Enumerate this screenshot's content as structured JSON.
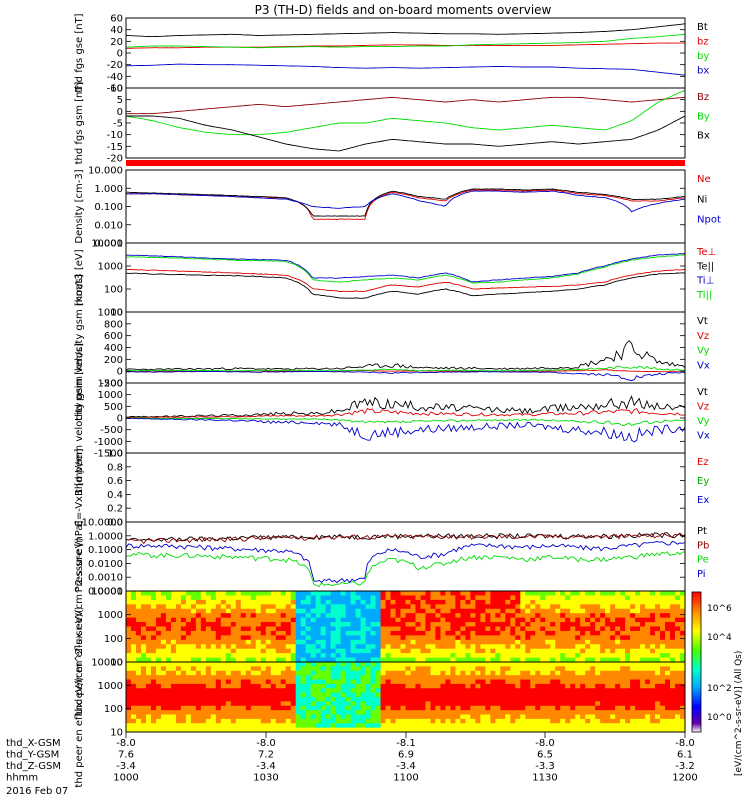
{
  "title": "P3 (TH-D) fields and on-board moments overview",
  "date": "2016 Feb 07",
  "colorbar": {
    "label": "[eV/(cm^2-s-sr-eV)] (All Qs)",
    "ticks": [
      {
        "label": "10^6"
      },
      {
        "label": "10^4"
      },
      {
        "label": "10^2"
      },
      {
        "label": "10^0"
      }
    ]
  },
  "ephemeris": {
    "rows": [
      {
        "label": "thd_X-GSM",
        "values": [
          "-8.0",
          "-8.0",
          "-8.1",
          "-8.0",
          "-8.0"
        ]
      },
      {
        "label": "thd_Y-GSM",
        "values": [
          "7.6",
          "7.2",
          "6.9",
          "6.5",
          "6.1"
        ]
      },
      {
        "label": "thd_Z-GSM",
        "values": [
          "-3.4",
          "-3.4",
          "-3.4",
          "-3.3",
          "-3.2"
        ]
      },
      {
        "label": "hhmm",
        "values": [
          "1000",
          "1030",
          "1100",
          "1130",
          "1200"
        ]
      }
    ]
  },
  "chart_data": [
    {
      "type": "line",
      "ylabel": "thd fgs gse [nT]",
      "ylim": [
        -60,
        60
      ],
      "yticks": [
        "60",
        "40",
        "20",
        "0",
        "-20",
        "-40",
        "-60"
      ],
      "series": [
        {
          "name": "Bt",
          "color": "#000000",
          "values": [
            30,
            28,
            30,
            31,
            32,
            30,
            31,
            32,
            33,
            34,
            35,
            34,
            33,
            33,
            32,
            33,
            34,
            35,
            37,
            40,
            45,
            50
          ]
        },
        {
          "name": "bz",
          "color": "#dd0000",
          "values": [
            8,
            9,
            9,
            10,
            10,
            10,
            11,
            12,
            12,
            13,
            14,
            14,
            13,
            13,
            13,
            13,
            13,
            14,
            15,
            16,
            17,
            17
          ]
        },
        {
          "name": "by",
          "color": "#00dd00",
          "values": [
            10,
            12,
            12,
            11,
            10,
            9,
            10,
            11,
            10,
            11,
            11,
            12,
            12,
            14,
            15,
            16,
            17,
            18,
            20,
            25,
            28,
            32
          ]
        },
        {
          "name": "bx",
          "color": "#0000cc",
          "values": [
            -22,
            -21,
            -19,
            -20,
            -20,
            -21,
            -22,
            -23,
            -25,
            -26,
            -25,
            -26,
            -25,
            -24,
            -23,
            -24,
            -24,
            -26,
            -27,
            -28,
            -33,
            -38
          ]
        }
      ]
    },
    {
      "type": "line",
      "ylabel": "thd fgs gsm [nT]",
      "ylim": [
        -20,
        10
      ],
      "yticks": [
        "10",
        "5",
        "0",
        "-5",
        "-10",
        "-15",
        "-20"
      ],
      "series": [
        {
          "name": "Bz",
          "color": "#8b0000",
          "values": [
            -1,
            -1,
            0,
            1,
            2,
            3,
            2,
            3,
            4,
            5,
            6,
            5,
            4,
            5,
            4,
            5,
            6,
            6,
            5,
            4,
            5,
            6
          ]
        },
        {
          "name": "By",
          "color": "#00dd00",
          "values": [
            -2,
            -4,
            -7,
            -9,
            -10,
            -10,
            -9,
            -7,
            -5,
            -5,
            -3,
            -4,
            -5,
            -7,
            -8,
            -7,
            -6,
            -7,
            -8,
            -4,
            4,
            9
          ]
        },
        {
          "name": "Bx",
          "color": "#000000",
          "values": [
            -2,
            -2,
            -3,
            -6,
            -8,
            -11,
            -14,
            -16,
            -17,
            -14,
            -12,
            -13,
            -14,
            -14,
            -15,
            -14,
            -13,
            -14,
            -13,
            -12,
            -8,
            -2
          ]
        }
      ]
    },
    {
      "type": "line",
      "ylabel": "Density [cm-3]",
      "yscale": "log",
      "ylim": [
        0.001,
        10
      ],
      "yticks": [
        "10.000",
        "1.000",
        "0.100",
        "0.010",
        "0.001"
      ],
      "series": [
        {
          "name": "Ne",
          "color": "#dd0000",
          "values": [
            0.5,
            0.5,
            0.45,
            0.4,
            0.35,
            0.3,
            0.3,
            0.02,
            0.02,
            0.02,
            0.6,
            0.3,
            0.2,
            0.8,
            0.8,
            0.7,
            0.8,
            0.5,
            0.4,
            0.2,
            0.2,
            0.3
          ]
        },
        {
          "name": "Ni",
          "color": "#000000",
          "values": [
            0.6,
            0.55,
            0.5,
            0.45,
            0.4,
            0.35,
            0.3,
            0.03,
            0.03,
            0.03,
            0.7,
            0.35,
            0.25,
            0.9,
            0.9,
            0.8,
            0.9,
            0.6,
            0.45,
            0.25,
            0.25,
            0.35
          ]
        },
        {
          "name": "Npot",
          "color": "#0000cc",
          "values": [
            0.5,
            0.5,
            0.45,
            0.4,
            0.35,
            0.3,
            0.25,
            0.1,
            0.08,
            0.1,
            0.5,
            0.2,
            0.1,
            0.7,
            0.7,
            0.6,
            0.7,
            0.4,
            0.3,
            0.05,
            0.15,
            0.25
          ]
        }
      ]
    },
    {
      "type": "line",
      "ylabel": "moat3 [eV]",
      "yscale": "log",
      "ylim": [
        10,
        10000
      ],
      "yticks": [
        "10000",
        "1000",
        "100",
        "10"
      ],
      "series": [
        {
          "name": "Te⊥",
          "color": "#dd0000",
          "values": [
            700,
            650,
            600,
            550,
            500,
            450,
            400,
            100,
            80,
            80,
            150,
            120,
            200,
            100,
            110,
            120,
            130,
            150,
            200,
            400,
            600,
            700
          ]
        },
        {
          "name": "Te||",
          "color": "#000000",
          "values": [
            500,
            450,
            420,
            400,
            380,
            350,
            300,
            60,
            40,
            40,
            80,
            60,
            100,
            50,
            60,
            70,
            80,
            100,
            150,
            300,
            450,
            500
          ]
        },
        {
          "name": "Ti⊥",
          "color": "#0000cc",
          "values": [
            3000,
            2800,
            2500,
            2200,
            2000,
            1900,
            1800,
            300,
            300,
            350,
            400,
            300,
            500,
            200,
            250,
            300,
            350,
            500,
            1000,
            2000,
            3000,
            3500
          ]
        },
        {
          "name": "Ti||",
          "color": "#00dd00",
          "values": [
            2500,
            2400,
            2200,
            2000,
            1800,
            1700,
            1600,
            250,
            200,
            250,
            300,
            250,
            400,
            180,
            200,
            250,
            300,
            450,
            900,
            1800,
            2500,
            3000
          ]
        }
      ]
    },
    {
      "type": "line",
      "ylabel": "thd peim velocity gsm [km/s]",
      "ylim": [
        -200,
        1000
      ],
      "yticks": [
        "1000",
        "800",
        "600",
        "400",
        "200",
        "0",
        "-200"
      ],
      "series": [
        {
          "name": "Vt",
          "color": "#000000",
          "values": [
            30,
            30,
            35,
            40,
            45,
            40,
            35,
            40,
            45,
            80,
            100,
            60,
            50,
            50,
            40,
            45,
            60,
            80,
            200,
            400,
            150,
            80
          ]
        },
        {
          "name": "Vz",
          "color": "#dd0000",
          "values": [
            0,
            5,
            0,
            -5,
            0,
            5,
            0,
            0,
            5,
            10,
            0,
            5,
            0,
            0,
            5,
            0,
            0,
            10,
            20,
            0,
            -10,
            0
          ]
        },
        {
          "name": "Vy",
          "color": "#00dd00",
          "values": [
            10,
            10,
            15,
            10,
            5,
            10,
            15,
            10,
            5,
            20,
            30,
            10,
            15,
            10,
            5,
            10,
            20,
            30,
            50,
            80,
            40,
            20
          ]
        },
        {
          "name": "Vx",
          "color": "#0000cc",
          "values": [
            -10,
            -15,
            -10,
            -5,
            -10,
            -15,
            -10,
            -5,
            -10,
            -20,
            -30,
            -20,
            -15,
            -10,
            -10,
            -15,
            -20,
            -40,
            -60,
            -120,
            -50,
            -20
          ]
        }
      ]
    },
    {
      "type": "line",
      "ylabel": "thd peem velocity gsm [km/s]",
      "ylim": [
        -1500,
        1500
      ],
      "yticks": [
        "1500",
        "1000",
        "500",
        "0",
        "-500",
        "-1000",
        "-1500"
      ],
      "series": [
        {
          "name": "Vt",
          "color": "#000000",
          "values": [
            50,
            60,
            80,
            100,
            120,
            150,
            200,
            180,
            300,
            700,
            600,
            500,
            450,
            400,
            350,
            300,
            400,
            500,
            600,
            700,
            500,
            400
          ]
        },
        {
          "name": "Vz",
          "color": "#dd0000",
          "values": [
            20,
            30,
            40,
            50,
            60,
            80,
            100,
            90,
            150,
            300,
            250,
            200,
            180,
            160,
            150,
            140,
            180,
            200,
            250,
            300,
            220,
            180
          ]
        },
        {
          "name": "Vy",
          "color": "#00dd00",
          "values": [
            0,
            -10,
            -20,
            -20,
            -30,
            -40,
            -50,
            -40,
            -80,
            -200,
            -180,
            -150,
            -120,
            -100,
            -90,
            -80,
            -100,
            -150,
            -200,
            -250,
            -150,
            -100
          ]
        },
        {
          "name": "Vx",
          "color": "#0000cc",
          "values": [
            -20,
            -40,
            -60,
            -80,
            -100,
            -150,
            -200,
            -180,
            -300,
            -700,
            -600,
            -500,
            -450,
            -400,
            -350,
            -300,
            -400,
            -500,
            -600,
            -800,
            -500,
            -400
          ]
        }
      ]
    },
    {
      "type": "line",
      "ylabel": "E=-VxB [mV/m]",
      "ylim": [
        0,
        1
      ],
      "yticks": [
        "1.0",
        "0.8",
        "0.6",
        "0.4",
        "0.2",
        "0.0"
      ],
      "series": [
        {
          "name": "Ez",
          "color": "#dd0000",
          "values": []
        },
        {
          "name": "Ey",
          "color": "#00aa00",
          "values": []
        },
        {
          "name": "Ex",
          "color": "#0000cc",
          "values": []
        }
      ]
    },
    {
      "type": "line",
      "ylabel": "Pressure [nPa]",
      "yscale": "log",
      "ylim": [
        0.0001,
        10
      ],
      "yticks": [
        "10.0000",
        "1.0000",
        "0.1000",
        "0.0100",
        "0.0010",
        "0.0001"
      ],
      "series": [
        {
          "name": "Pt",
          "color": "#000000",
          "values": [
            0.5,
            0.5,
            0.6,
            0.6,
            0.7,
            0.8,
            0.8,
            0.9,
            0.9,
            0.9,
            1,
            1,
            1,
            1,
            1,
            1,
            1,
            1,
            1,
            1.1,
            1.2,
            1.3
          ]
        },
        {
          "name": "Pb",
          "color": "#8b0000",
          "values": [
            0.4,
            0.45,
            0.5,
            0.55,
            0.6,
            0.7,
            0.75,
            0.8,
            0.85,
            0.85,
            0.9,
            0.9,
            0.9,
            0.9,
            0.9,
            0.9,
            0.9,
            0.9,
            0.9,
            1,
            1.1,
            1.2
          ]
        },
        {
          "name": "Pe",
          "color": "#00dd00",
          "values": [
            0.05,
            0.04,
            0.04,
            0.035,
            0.03,
            0.025,
            0.02,
            0.0003,
            0.0003,
            0.0004,
            0.02,
            0.005,
            0.01,
            0.03,
            0.03,
            0.02,
            0.03,
            0.02,
            0.02,
            0.03,
            0.05,
            0.06
          ]
        },
        {
          "name": "Pi",
          "color": "#0000cc",
          "values": [
            0.2,
            0.2,
            0.18,
            0.15,
            0.12,
            0.1,
            0.08,
            0.0005,
            0.0006,
            0.0008,
            0.1,
            0.03,
            0.05,
            0.2,
            0.2,
            0.15,
            0.2,
            0.15,
            0.12,
            0.2,
            0.3,
            0.35
          ]
        }
      ]
    },
    {
      "type": "heatmap",
      "ylabel": "thd peir en eflux eV/(cm^2-s-sr-eV)",
      "yscale": "log",
      "ylim": [
        5,
        30000
      ],
      "yticks": [
        "10000",
        "1000",
        "100",
        "10"
      ]
    },
    {
      "type": "heatmap",
      "ylabel": "thd peer en eflux eV/(cm^2-s-sr-eV)",
      "yscale": "log",
      "ylim": [
        5,
        30000
      ],
      "yticks": [
        "10000",
        "1000",
        "100",
        "10"
      ]
    }
  ]
}
